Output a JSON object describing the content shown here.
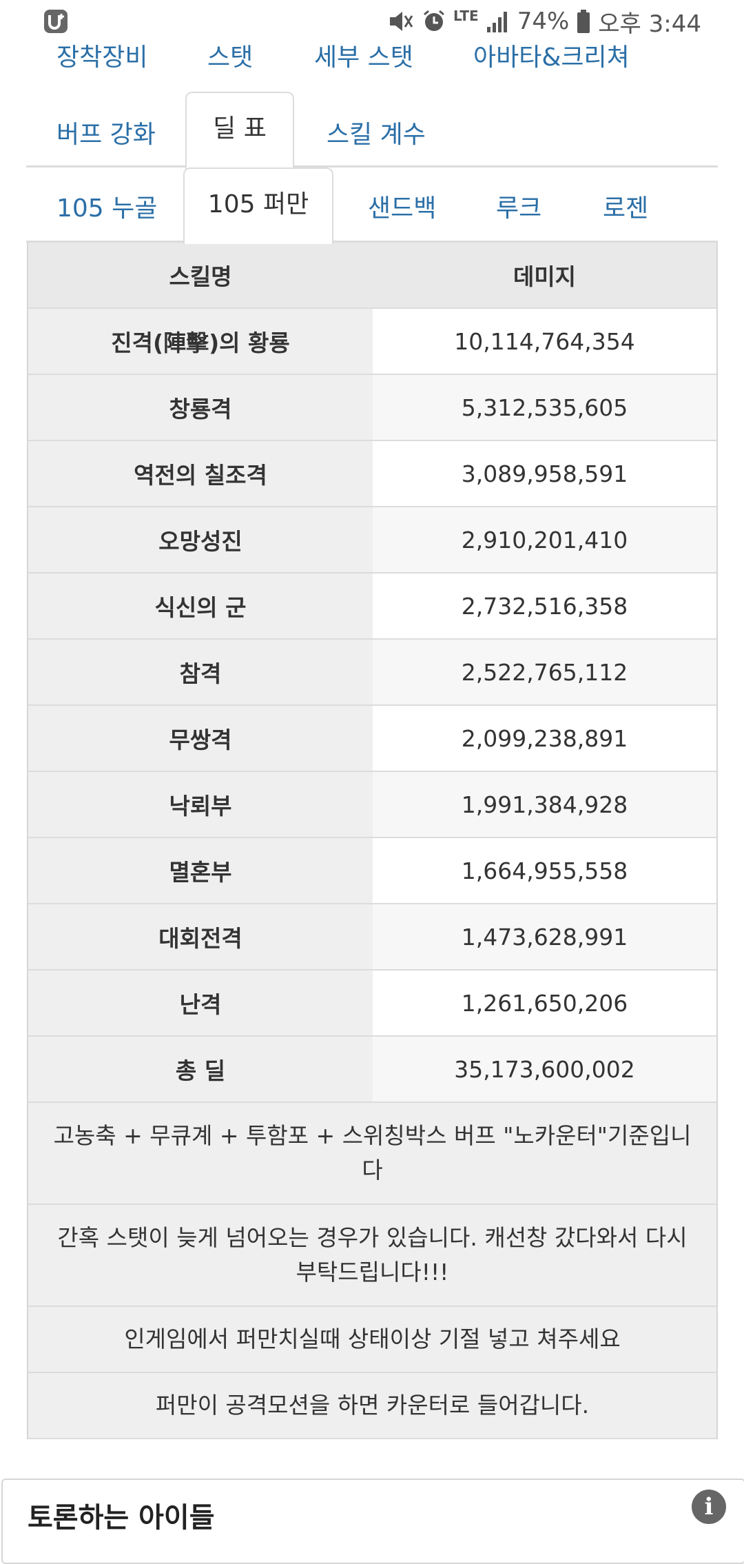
{
  "status_bar": {
    "app_icon": "u-plus-logo-icon",
    "battery_percent": "74%",
    "network": "LTE",
    "time": "오후 3:44"
  },
  "top_links": [
    "장착장비",
    "스탯",
    "세부 스탯",
    "아바타&크리쳐"
  ],
  "tabs_row1": [
    {
      "label": "버프 강화",
      "active": false
    },
    {
      "label": "딜 표",
      "active": true
    },
    {
      "label": "스킬 계수",
      "active": false
    }
  ],
  "tabs_row2": [
    {
      "label": "105 누골",
      "active": false
    },
    {
      "label": "105 퍼만",
      "active": true
    },
    {
      "label": "샌드백",
      "active": false
    },
    {
      "label": "루크",
      "active": false
    },
    {
      "label": "로젠",
      "active": false
    }
  ],
  "table": {
    "headers": [
      "스킬명",
      "데미지"
    ],
    "rows": [
      {
        "skill": "진격(陣擊)의 황룡",
        "damage": "10,114,764,354"
      },
      {
        "skill": "창룡격",
        "damage": "5,312,535,605"
      },
      {
        "skill": "역전의 칠조격",
        "damage": "3,089,958,591"
      },
      {
        "skill": "오망성진",
        "damage": "2,910,201,410"
      },
      {
        "skill": "식신의 군",
        "damage": "2,732,516,358"
      },
      {
        "skill": "참격",
        "damage": "2,522,765,112"
      },
      {
        "skill": "무쌍격",
        "damage": "2,099,238,891"
      },
      {
        "skill": "낙뢰부",
        "damage": "1,991,384,928"
      },
      {
        "skill": "멸혼부",
        "damage": "1,664,955,558"
      },
      {
        "skill": "대회전격",
        "damage": "1,473,628,991"
      },
      {
        "skill": "난격",
        "damage": "1,261,650,206"
      },
      {
        "skill": "총 딜",
        "damage": "35,173,600,002"
      }
    ],
    "notes": [
      "고농축 + 무큐계 + 투함포 + 스위칭박스 버프 \"노카운터\"기준입니다",
      "간혹 스탯이 늦게 넘어오는 경우가 있습니다. 캐선창 갔다와서 다시 부탁드립니다!!!",
      "인게임에서 퍼만치실때 상태이상 기절 넣고 쳐주세요",
      "퍼만이 공격모션을 하면 카운터로 들어갑니다."
    ]
  },
  "bottom_card": {
    "title": "토론하는 아이들",
    "icon": "info-icon",
    "icon_glyph": "i"
  }
}
